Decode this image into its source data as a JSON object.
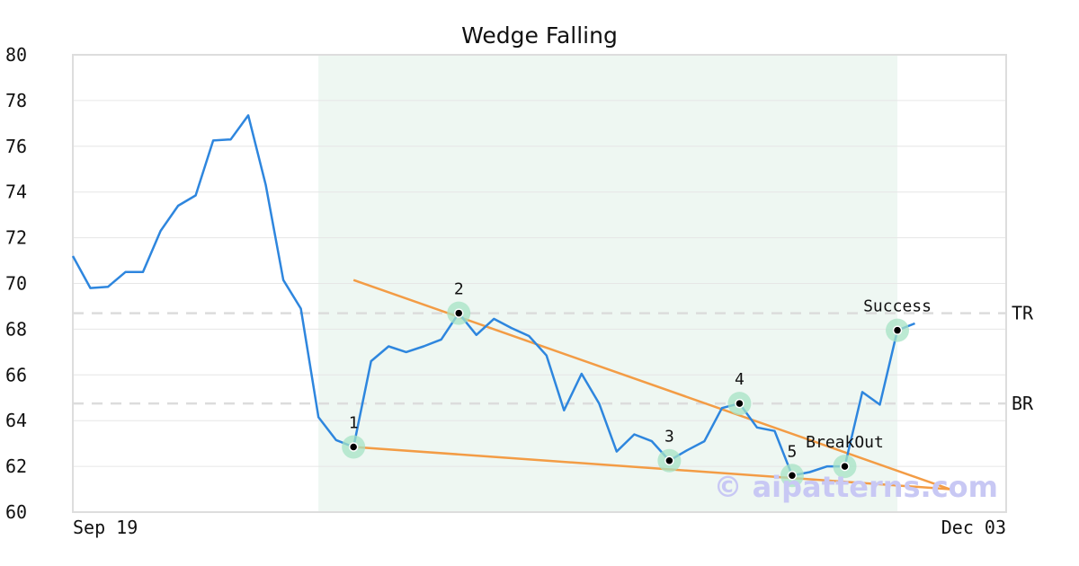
{
  "chart_data": {
    "type": "line",
    "title": "Wedge Falling",
    "ylim": [
      60,
      80
    ],
    "yticks": [
      60,
      62,
      64,
      66,
      68,
      70,
      72,
      74,
      76,
      78,
      80
    ],
    "x_start_label": "Sep 19",
    "x_end_label": "Dec 03",
    "grid": true,
    "series": [
      {
        "color": "#2e86de",
        "values": [
          71.2,
          69.8,
          69.85,
          70.5,
          70.5,
          72.3,
          73.4,
          73.85,
          76.25,
          76.3,
          77.35,
          74.3,
          70.15,
          68.9,
          64.15,
          63.15,
          62.85,
          66.6,
          67.25,
          67.0,
          67.25,
          67.55,
          68.7,
          67.75,
          68.45,
          68.05,
          67.7,
          66.85,
          64.45,
          66.05,
          64.75,
          62.65,
          63.4,
          63.1,
          62.25,
          62.7,
          63.1,
          64.55,
          64.75,
          63.7,
          63.55,
          61.6,
          61.75,
          62.0,
          62.0,
          65.25,
          64.7,
          67.95,
          68.25
        ]
      }
    ],
    "pattern_region": {
      "start_index": 14,
      "end_index": 47,
      "color": "#eef7f2"
    },
    "trend_lines": [
      {
        "name": "upper",
        "color": "#f39c45",
        "from": [
          16,
          70.15
        ],
        "to": [
          50,
          61.0
        ]
      },
      {
        "name": "lower",
        "color": "#f39c45",
        "from": [
          16,
          62.85
        ],
        "to": [
          50,
          61.0
        ]
      }
    ],
    "horizontal_lines": [
      {
        "label": "TR",
        "value": 68.7
      },
      {
        "label": "BR",
        "value": 64.75
      }
    ],
    "points": [
      {
        "label": "1",
        "index": 16,
        "value": 62.85
      },
      {
        "label": "2",
        "index": 22,
        "value": 68.7
      },
      {
        "label": "3",
        "index": 34,
        "value": 62.25
      },
      {
        "label": "4",
        "index": 38,
        "value": 64.75
      },
      {
        "label": "5",
        "index": 41,
        "value": 61.6
      },
      {
        "label": "BreakOut",
        "index": 44,
        "value": 62.0
      },
      {
        "label": "Success",
        "index": 47,
        "value": 67.95
      }
    ],
    "watermark": "© aipatterns.com"
  }
}
